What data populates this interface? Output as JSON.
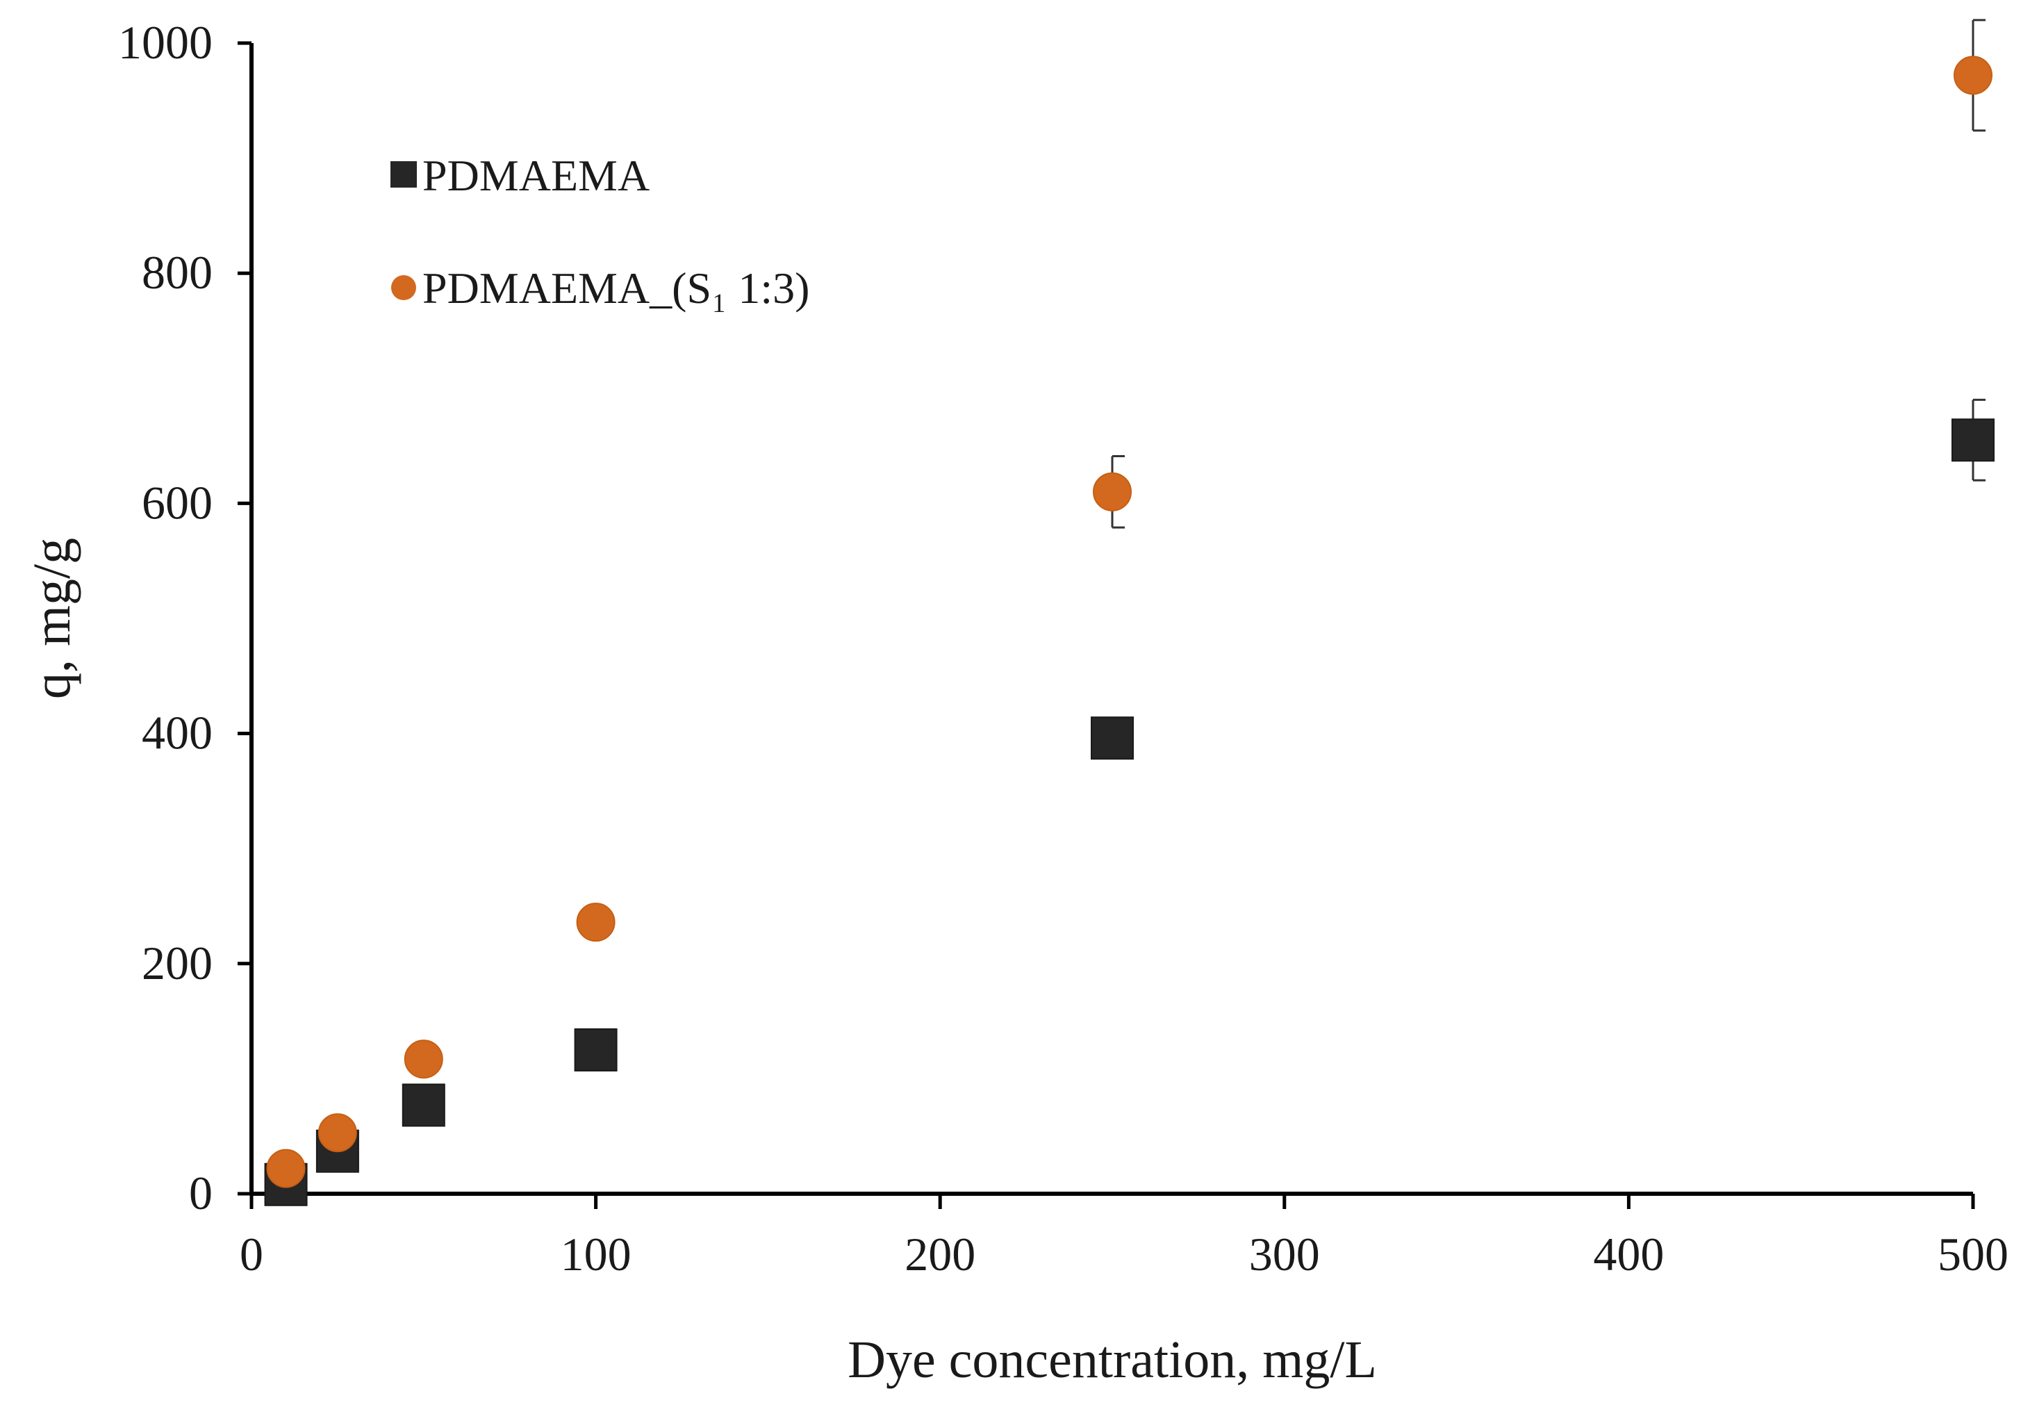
{
  "chart_data": {
    "type": "scatter",
    "title": "",
    "xlabel": "Dye concentration, mg/L",
    "ylabel": "q, mg/g",
    "xlim": [
      0,
      500
    ],
    "ylim": [
      0,
      1000
    ],
    "xticks": [
      0,
      100,
      200,
      300,
      400,
      500
    ],
    "yticks": [
      0,
      200,
      400,
      600,
      800,
      1000
    ],
    "xtick_labels": [
      "0",
      "100",
      "200",
      "300",
      "400",
      "500"
    ],
    "ytick_labels": [
      "0",
      "200",
      "400",
      "600",
      "800",
      "1000"
    ],
    "grid": false,
    "legend_position": "top-left",
    "series": [
      {
        "name": "PDMAEMA",
        "marker": "square",
        "color": "#262626",
        "x": [
          10,
          25,
          50,
          100,
          250,
          500
        ],
        "y": [
          8,
          37,
          77,
          125,
          396,
          655
        ],
        "err": [
          0,
          0,
          0,
          0,
          0,
          35
        ]
      },
      {
        "name": "PDMAEMA_(S₁ 1:3)",
        "marker": "circle",
        "color": "#D2691E",
        "x": [
          10,
          25,
          50,
          100,
          250,
          500
        ],
        "y": [
          22,
          53,
          117,
          236,
          610,
          972
        ],
        "err": [
          0,
          0,
          0,
          0,
          31,
          48
        ]
      }
    ]
  }
}
